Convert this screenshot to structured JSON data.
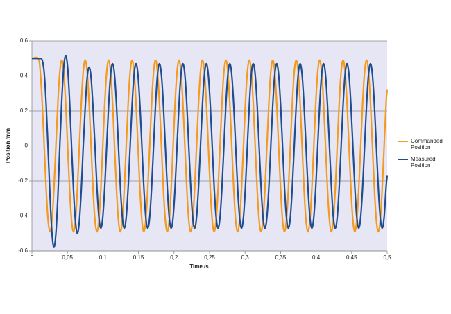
{
  "chart_data": {
    "type": "line",
    "x_label": "Time /s",
    "y_label": "Position /mm",
    "xlim": [
      0,
      0.5
    ],
    "ylim": [
      -0.6,
      0.6
    ],
    "xticks": [
      0,
      {
        "value": 0.05,
        "label": "0,05"
      },
      {
        "value": 0.1,
        "label": "0,1"
      },
      {
        "value": 0.15,
        "label": "0,15"
      },
      {
        "value": 0.2,
        "label": "0,2"
      },
      {
        "value": 0.25,
        "label": "0,25"
      },
      {
        "value": 0.3,
        "label": "0,3"
      },
      {
        "value": 0.35,
        "label": "0,35"
      },
      {
        "value": 0.4,
        "label": "0,4"
      },
      {
        "value": 0.45,
        "label": "0,45"
      },
      {
        "value": 0.5,
        "label": "0,5"
      }
    ],
    "yticks": [
      {
        "value": -0.6,
        "label": "-0,6"
      },
      {
        "value": -0.4,
        "label": "-0,4"
      },
      {
        "value": -0.2,
        "label": "-0,2"
      },
      0,
      {
        "value": 0.2,
        "label": "0,2"
      },
      {
        "value": 0.4,
        "label": "0,4"
      },
      {
        "value": 0.6,
        "label": "0,6"
      }
    ],
    "grid": true,
    "background": "#e6e6f4",
    "legend": "right",
    "x": [
      0,
      0.009,
      0.01175,
      0.0145,
      0.01725,
      0.02,
      0.02275,
      0.0255,
      0.02825,
      0.031,
      0.03375,
      0.0365,
      0.03925,
      0.042,
      0.04475,
      0.0475,
      0.05025,
      0.053,
      0.05575,
      0.0585,
      0.06125,
      0.064,
      0.06675,
      0.0695,
      0.07225,
      0.075,
      0.07775,
      0.0805,
      0.08325,
      0.086,
      0.08875,
      0.0915,
      0.09425,
      0.097,
      0.09975,
      0.1025,
      0.10525,
      0.108,
      0.11075,
      0.1135,
      0.11625,
      0.119,
      0.12175,
      0.1245,
      0.12725,
      0.13,
      0.13275,
      0.1355,
      0.13825,
      0.141,
      0.14375,
      0.1465,
      0.14925,
      0.152,
      0.15475,
      0.1575,
      0.16025,
      0.163,
      0.16575,
      0.1685,
      0.17125,
      0.174,
      0.17675,
      0.1795,
      0.18225,
      0.185,
      0.18775,
      0.1905,
      0.19325,
      0.196,
      0.19875,
      0.2015,
      0.20425,
      0.207,
      0.20975,
      0.2125,
      0.21525,
      0.218,
      0.22075,
      0.2235,
      0.22625,
      0.229,
      0.23175,
      0.2345,
      0.23725,
      0.24,
      0.24275,
      0.2455,
      0.24825,
      0.251,
      0.25375,
      0.2565,
      0.25925,
      0.262,
      0.26475,
      0.2675,
      0.27025,
      0.273,
      0.27575,
      0.2785,
      0.28125,
      0.284,
      0.28675,
      0.2895,
      0.29225,
      0.295,
      0.29775,
      0.3005,
      0.30325,
      0.306,
      0.30875,
      0.3115,
      0.31425,
      0.317,
      0.31975,
      0.3225,
      0.32525,
      0.328,
      0.33075,
      0.3335,
      0.33625,
      0.339,
      0.34175,
      0.3445,
      0.34725,
      0.35,
      0.35275,
      0.3555,
      0.35825,
      0.361,
      0.36375,
      0.3665,
      0.36925,
      0.372,
      0.37475,
      0.3775,
      0.38025,
      0.383,
      0.38575,
      0.3885,
      0.39125,
      0.394,
      0.39675,
      0.3995,
      0.40225,
      0.405,
      0.40775,
      0.4105,
      0.41325,
      0.416,
      0.41875,
      0.4215,
      0.42425,
      0.427,
      0.42975,
      0.4325,
      0.43525,
      0.438,
      0.44075,
      0.4435,
      0.44625,
      0.449,
      0.45175,
      0.4545,
      0.45725,
      0.46,
      0.46275,
      0.4655,
      0.46825,
      0.471,
      0.47375,
      0.4765,
      0.47925,
      0.482,
      0.48475,
      0.4875,
      0.49025,
      0.493,
      0.49575,
      0.4985,
      0.5
    ],
    "series": [
      {
        "name": "Commanded Position",
        "color": "#f39a1f",
        "values": [
          0.5,
          0.5,
          0.424,
          0.245,
          0,
          -0.245,
          -0.424,
          -0.49,
          -0.424,
          -0.245,
          0,
          0.245,
          0.424,
          0.49,
          0.424,
          0.245,
          0,
          -0.245,
          -0.424,
          -0.49,
          -0.424,
          -0.245,
          0,
          0.245,
          0.424,
          0.49,
          0.424,
          0.245,
          0,
          -0.245,
          -0.424,
          -0.49,
          -0.424,
          -0.245,
          0,
          0.245,
          0.424,
          0.49,
          0.424,
          0.245,
          0,
          -0.245,
          -0.424,
          -0.49,
          -0.424,
          -0.245,
          0,
          0.245,
          0.424,
          0.49,
          0.424,
          0.245,
          0,
          -0.245,
          -0.424,
          -0.49,
          -0.424,
          -0.245,
          0,
          0.245,
          0.424,
          0.49,
          0.424,
          0.245,
          0,
          -0.245,
          -0.424,
          -0.49,
          -0.424,
          -0.245,
          0,
          0.245,
          0.424,
          0.49,
          0.424,
          0.245,
          0,
          -0.245,
          -0.424,
          -0.49,
          -0.424,
          -0.245,
          0,
          0.245,
          0.424,
          0.49,
          0.424,
          0.245,
          0,
          -0.245,
          -0.424,
          -0.49,
          -0.424,
          -0.245,
          0,
          0.245,
          0.424,
          0.49,
          0.424,
          0.245,
          0,
          -0.245,
          -0.424,
          -0.49,
          -0.424,
          -0.245,
          0,
          0.245,
          0.424,
          0.49,
          0.424,
          0.245,
          0,
          -0.245,
          -0.424,
          -0.49,
          -0.424,
          -0.245,
          0,
          0.245,
          0.424,
          0.49,
          0.424,
          0.245,
          0,
          -0.245,
          -0.424,
          -0.49,
          -0.424,
          -0.245,
          0,
          0.245,
          0.424,
          0.49,
          0.424,
          0.245,
          0,
          -0.245,
          -0.424,
          -0.49,
          -0.424,
          -0.245,
          0,
          0.245,
          0.424,
          0.49,
          0.424,
          0.245,
          0,
          -0.245,
          -0.424,
          -0.49,
          -0.424,
          -0.245,
          0,
          0.245,
          0.424,
          0.49,
          0.424,
          0.245,
          0,
          -0.245,
          -0.424,
          -0.49,
          -0.424,
          -0.245,
          0,
          0.245,
          0.424,
          0.49,
          0.424,
          0.245,
          0,
          -0.245,
          -0.424,
          -0.49,
          -0.424,
          -0.245,
          0,
          0.245,
          0.32
        ]
      },
      {
        "name": "Measured Position",
        "color": "#1f4d8f",
        "values": [
          0.5,
          0.5,
          0.5,
          0.49,
          0.42,
          0.24,
          -0.02,
          -0.29,
          -0.5,
          -0.58,
          -0.5,
          -0.29,
          0,
          0.26,
          0.45,
          0.515,
          0.45,
          0.26,
          0,
          -0.25,
          -0.43,
          -0.5,
          -0.43,
          -0.25,
          0,
          0.22,
          0.39,
          0.45,
          0.39,
          0.22,
          0,
          -0.235,
          -0.407,
          -0.47,
          -0.407,
          -0.235,
          0,
          0.235,
          0.407,
          0.47,
          0.407,
          0.235,
          0,
          -0.235,
          -0.407,
          -0.47,
          -0.407,
          -0.235,
          0,
          0.235,
          0.407,
          0.47,
          0.407,
          0.235,
          0,
          -0.235,
          -0.407,
          -0.47,
          -0.407,
          -0.235,
          0,
          0.235,
          0.407,
          0.47,
          0.407,
          0.235,
          0,
          -0.235,
          -0.407,
          -0.47,
          -0.407,
          -0.235,
          0,
          0.235,
          0.407,
          0.47,
          0.407,
          0.235,
          0,
          -0.235,
          -0.407,
          -0.47,
          -0.407,
          -0.235,
          0,
          0.235,
          0.407,
          0.47,
          0.407,
          0.235,
          0,
          -0.235,
          -0.407,
          -0.47,
          -0.407,
          -0.235,
          0,
          0.235,
          0.407,
          0.47,
          0.407,
          0.235,
          0,
          -0.235,
          -0.407,
          -0.47,
          -0.407,
          -0.235,
          0,
          0.235,
          0.407,
          0.47,
          0.407,
          0.235,
          0,
          -0.235,
          -0.407,
          -0.47,
          -0.407,
          -0.235,
          0,
          0.235,
          0.407,
          0.47,
          0.407,
          0.235,
          0,
          -0.235,
          -0.407,
          -0.47,
          -0.407,
          -0.235,
          0,
          0.235,
          0.407,
          0.47,
          0.407,
          0.235,
          0,
          -0.235,
          -0.407,
          -0.47,
          -0.407,
          -0.235,
          0,
          0.235,
          0.407,
          0.47,
          0.407,
          0.235,
          0,
          -0.235,
          -0.407,
          -0.47,
          -0.407,
          -0.235,
          0,
          0.235,
          0.407,
          0.47,
          0.407,
          0.235,
          0,
          -0.235,
          -0.407,
          -0.47,
          -0.407,
          -0.235,
          0,
          0.235,
          0.407,
          0.47,
          0.407,
          0.235,
          0,
          -0.235,
          -0.407,
          -0.47,
          -0.407,
          -0.235,
          -0.17
        ]
      }
    ]
  }
}
